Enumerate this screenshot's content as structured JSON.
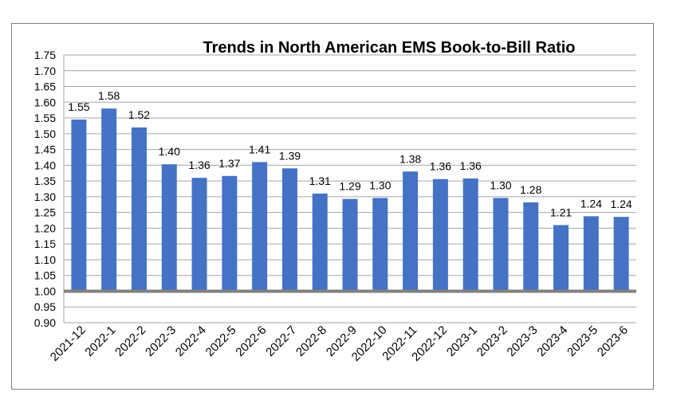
{
  "chart_data": {
    "type": "bar",
    "title": "Trends in North American EMS Book-to-Bill Ratio",
    "xlabel": "",
    "ylabel": "",
    "ylim": [
      0.9,
      1.75
    ],
    "yticks": [
      "0.90",
      "0.95",
      "1.00",
      "1.05",
      "1.10",
      "1.15",
      "1.20",
      "1.25",
      "1.30",
      "1.35",
      "1.40",
      "1.45",
      "1.50",
      "1.55",
      "1.60",
      "1.65",
      "1.70",
      "1.75"
    ],
    "baseline": 1.0,
    "grid": true,
    "legend": "none",
    "categories": [
      "2021-12",
      "2022-1",
      "2022-2",
      "2022-3",
      "2022-4",
      "2022-5",
      "2022-6",
      "2022-7",
      "2022-8",
      "2022-9",
      "2022-10",
      "2022-11",
      "2022-12",
      "2023-1",
      "2023-2",
      "2023-3",
      "2023-4",
      "2023-5",
      "2023-6"
    ],
    "values": [
      1.545,
      1.58,
      1.52,
      1.403,
      1.36,
      1.366,
      1.41,
      1.39,
      1.31,
      1.293,
      1.296,
      1.38,
      1.356,
      1.358,
      1.296,
      1.282,
      1.21,
      1.238,
      1.236
    ],
    "labels": [
      "1.55",
      "1.58",
      "1.52",
      "1.40",
      "1.36",
      "1.37",
      "1.41",
      "1.39",
      "1.31",
      "1.29",
      "1.30",
      "1.38",
      "1.36",
      "1.36",
      "1.30",
      "1.28",
      "1.21",
      "1.24",
      "1.24"
    ],
    "colors": {
      "bar": "#4472c4",
      "baseline": "#808080",
      "grid": "#a6a6a6"
    }
  }
}
